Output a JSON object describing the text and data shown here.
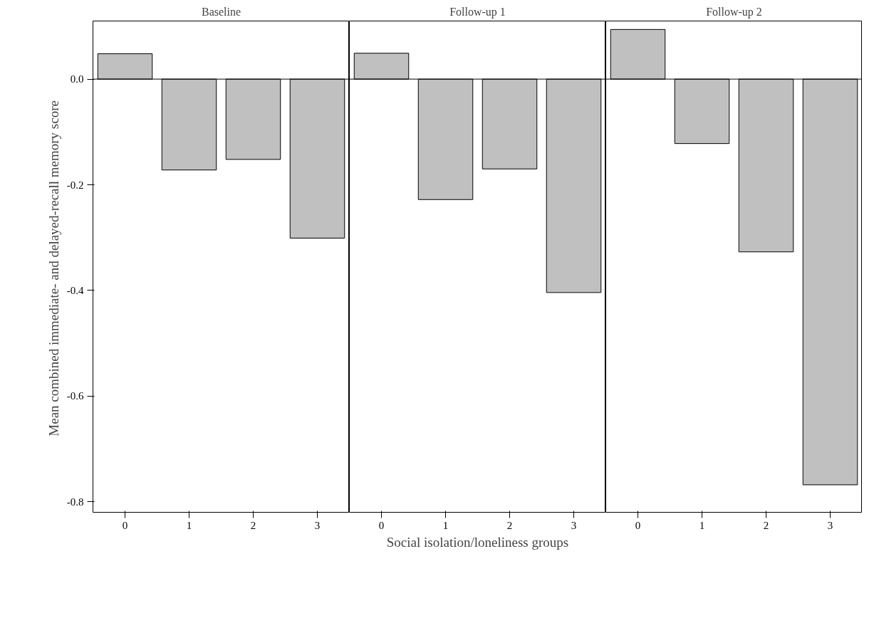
{
  "chart_data": [
    {
      "type": "bar",
      "title": "Baseline",
      "ylabel": "Mean combined immediate- and delayed-recall  memory score",
      "categories": [
        "0",
        "1",
        "2",
        "3"
      ],
      "values": [
        0.048,
        -0.172,
        -0.152,
        -0.301
      ],
      "color": "#c0c0c0",
      "ylim": [
        -0.82,
        0.11
      ],
      "yticks": [
        {
          "value": 0,
          "label": "0.0"
        },
        -0.2,
        -0.4,
        -0.6,
        -0.8
      ],
      "ref_lines": [
        {
          "axis": "y",
          "value": 0
        }
      ],
      "grid": false
    },
    {
      "type": "bar",
      "title": "Follow-up 1",
      "xlabel": "Social isolation/loneliness groups",
      "categories": [
        "0",
        "1",
        "2",
        "3"
      ],
      "values": [
        0.049,
        -0.228,
        -0.17,
        -0.404
      ],
      "color": "#c0c0c0",
      "ylim": [
        -0.82,
        0.11
      ],
      "tick_labels": "x",
      "ref_lines": [
        {
          "axis": "y",
          "value": 0
        }
      ],
      "grid": false
    },
    {
      "type": "bar",
      "title": "Follow-up 2",
      "categories": [
        "0",
        "1",
        "2",
        "3"
      ],
      "values": [
        0.094,
        -0.122,
        -0.327,
        -0.768
      ],
      "color": "#c0c0c0",
      "ylim": [
        -0.82,
        0.11
      ],
      "tick_labels": "x",
      "ref_lines": [
        {
          "axis": "y",
          "value": 0
        }
      ],
      "grid": false
    }
  ]
}
